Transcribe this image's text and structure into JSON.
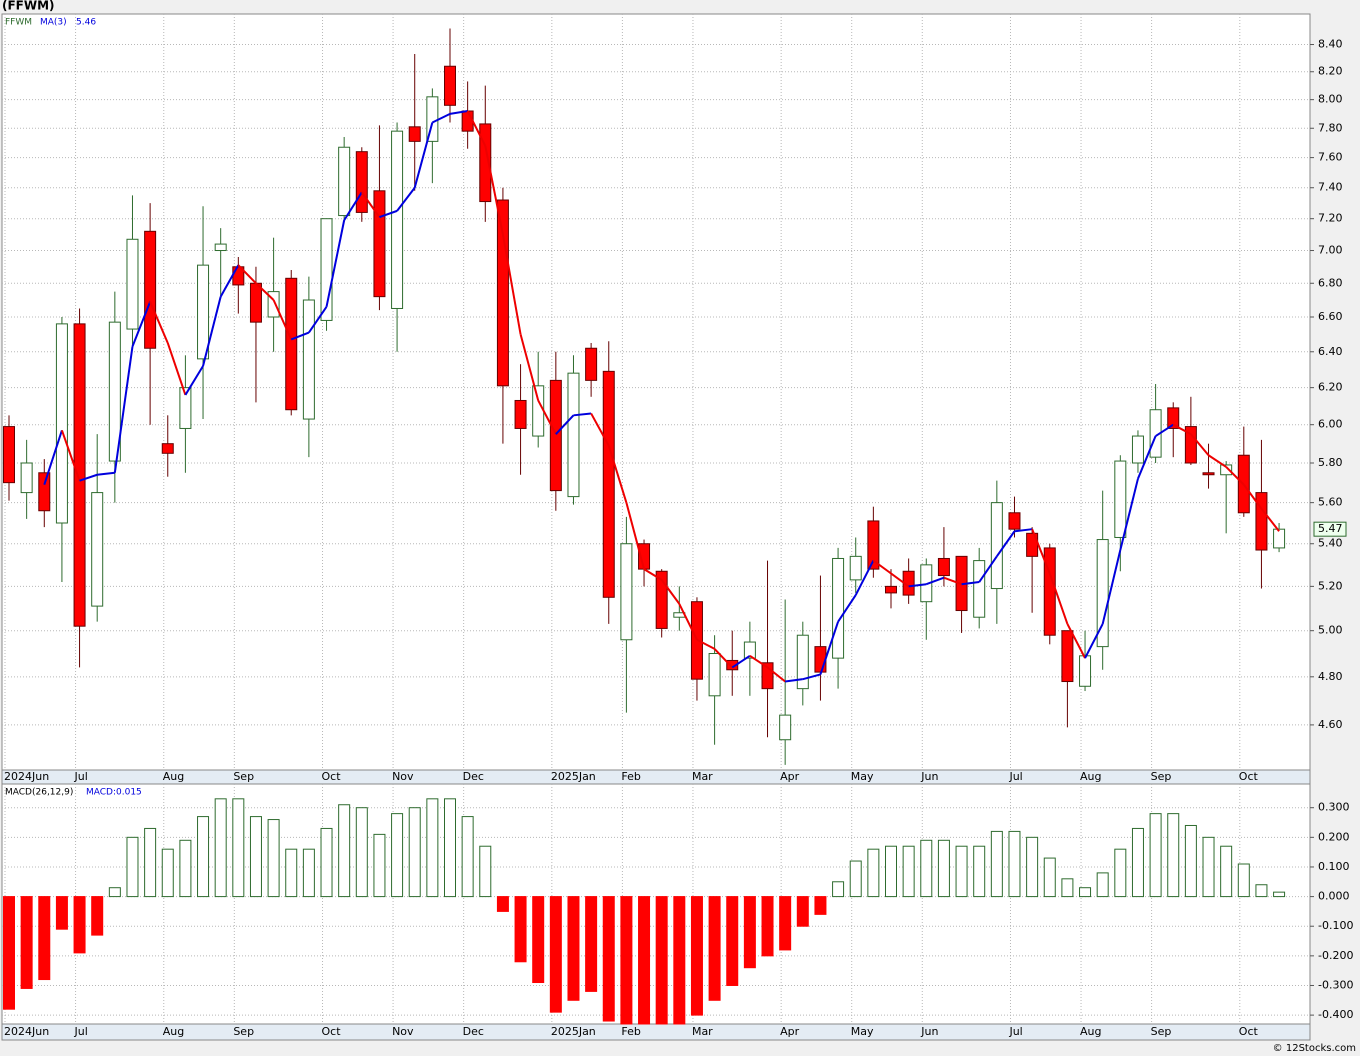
{
  "chart_data": [
    {
      "type": "candlestick",
      "title": "(FFWM)",
      "symbol": "FFWM",
      "log": true,
      "grid": true,
      "categories": [
        "2024Jun",
        null,
        null,
        null,
        "Jul",
        null,
        null,
        null,
        null,
        "Aug",
        null,
        null,
        null,
        "Sep",
        null,
        null,
        null,
        null,
        "Oct",
        null,
        null,
        null,
        "Nov",
        null,
        null,
        null,
        "Dec",
        null,
        null,
        null,
        null,
        "2025Jan",
        null,
        null,
        null,
        "Feb",
        null,
        null,
        null,
        "Mar",
        null,
        null,
        null,
        null,
        "Apr",
        null,
        null,
        null,
        "May",
        null,
        null,
        null,
        "Jun",
        null,
        null,
        null,
        null,
        "Jul",
        null,
        null,
        null,
        "Aug",
        null,
        null,
        null,
        "Sep",
        null,
        null,
        null,
        null,
        "Oct",
        null,
        null
      ],
      "open": [
        5.99,
        5.65,
        5.75,
        5.5,
        6.56,
        5.11,
        5.81,
        6.53,
        7.12,
        5.9,
        5.98,
        6.36,
        7.0,
        6.9,
        6.8,
        6.6,
        6.83,
        6.03,
        6.58,
        7.22,
        7.64,
        7.38,
        6.65,
        7.81,
        7.71,
        8.24,
        7.92,
        7.83,
        7.32,
        6.13,
        5.94,
        6.24,
        5.63,
        6.42,
        6.29,
        4.96,
        5.4,
        5.27,
        5.06,
        5.13,
        4.72,
        4.87,
        4.88,
        4.86,
        4.54,
        4.75,
        4.93,
        4.88,
        5.23,
        5.51,
        5.2,
        5.27,
        5.13,
        5.33,
        5.34,
        5.06,
        5.19,
        5.55,
        5.45,
        5.38,
        5.0,
        4.76,
        4.93,
        5.43,
        5.8,
        5.83,
        6.09,
        5.99,
        5.75,
        5.74,
        5.84,
        5.65,
        5.38
      ],
      "high": [
        6.05,
        5.92,
        5.82,
        6.6,
        6.65,
        5.95,
        6.75,
        7.35,
        7.3,
        6.05,
        6.38,
        7.28,
        7.14,
        6.96,
        6.9,
        7.08,
        6.88,
        6.84,
        7.2,
        7.74,
        7.67,
        7.82,
        7.84,
        8.33,
        8.08,
        8.52,
        8.13,
        8.1,
        7.4,
        6.33,
        6.4,
        6.4,
        6.38,
        6.45,
        6.46,
        5.53,
        5.42,
        5.28,
        5.2,
        5.15,
        4.98,
        5.0,
        5.04,
        5.32,
        5.14,
        5.04,
        5.25,
        5.38,
        5.43,
        5.58,
        5.28,
        5.33,
        5.33,
        5.48,
        5.34,
        5.38,
        5.71,
        5.63,
        5.48,
        5.4,
        5.0,
        5.0,
        5.66,
        5.84,
        5.97,
        6.22,
        6.12,
        6.15,
        5.9,
        5.81,
        5.99,
        5.92,
        5.5
      ],
      "low": [
        5.61,
        5.52,
        5.48,
        5.22,
        4.84,
        5.04,
        5.6,
        6.42,
        6.0,
        5.73,
        5.75,
        6.03,
        6.72,
        6.62,
        6.12,
        6.4,
        6.05,
        5.83,
        6.52,
        7.18,
        7.18,
        6.64,
        6.4,
        7.38,
        7.43,
        7.84,
        7.66,
        7.18,
        5.9,
        5.74,
        5.88,
        5.56,
        5.59,
        6.15,
        5.03,
        4.65,
        5.2,
        4.97,
        5.0,
        4.7,
        4.52,
        4.72,
        4.72,
        4.55,
        4.44,
        4.68,
        4.7,
        4.75,
        5.17,
        5.24,
        5.1,
        5.12,
        4.96,
        5.2,
        4.99,
        5.01,
        5.03,
        5.43,
        5.08,
        4.94,
        4.59,
        4.74,
        4.83,
        5.27,
        5.75,
        5.8,
        5.83,
        5.79,
        5.67,
        5.45,
        5.53,
        5.19,
        5.36
      ],
      "close": [
        5.7,
        5.8,
        5.56,
        6.56,
        5.02,
        5.65,
        6.57,
        7.07,
        6.42,
        5.85,
        6.2,
        6.91,
        7.04,
        6.79,
        6.57,
        6.75,
        6.08,
        6.7,
        7.2,
        7.67,
        7.24,
        6.72,
        7.78,
        7.71,
        8.02,
        7.96,
        7.78,
        7.31,
        6.21,
        5.98,
        6.21,
        5.66,
        6.28,
        6.24,
        5.15,
        5.4,
        5.28,
        5.01,
        5.08,
        4.79,
        4.9,
        4.83,
        4.95,
        4.75,
        4.64,
        4.98,
        4.82,
        5.33,
        5.34,
        5.28,
        5.17,
        5.16,
        5.3,
        5.25,
        5.09,
        5.32,
        5.6,
        5.47,
        5.34,
        4.98,
        4.78,
        4.89,
        5.42,
        5.81,
        5.94,
        6.08,
        5.98,
        5.8,
        5.74,
        5.79,
        5.55,
        5.37,
        5.47
      ],
      "up_color": "#2e6b2e",
      "down_color": "#ff0000",
      "series": [
        {
          "name": "MA(3)",
          "up_color": "#0000dd",
          "down_color": "#ee0000",
          "values": [
            null,
            null,
            5.69,
            5.97,
            5.71,
            5.74,
            5.75,
            6.43,
            6.69,
            6.45,
            6.16,
            6.32,
            6.72,
            6.91,
            6.8,
            6.7,
            6.47,
            6.51,
            6.66,
            7.19,
            7.37,
            7.21,
            7.25,
            7.4,
            7.84,
            7.9,
            7.92,
            7.68,
            7.1,
            6.5,
            6.13,
            5.95,
            6.05,
            6.06,
            5.89,
            5.6,
            5.28,
            5.23,
            5.12,
            4.96,
            4.92,
            4.84,
            4.89,
            4.84,
            4.78,
            4.79,
            4.81,
            5.04,
            5.16,
            5.32,
            5.26,
            5.2,
            5.21,
            5.24,
            5.21,
            5.22,
            5.34,
            5.46,
            5.47,
            5.26,
            5.03,
            4.88,
            5.03,
            5.37,
            5.72,
            5.94,
            6.0,
            5.95,
            5.84,
            5.78,
            5.69,
            5.57,
            5.46
          ]
        }
      ],
      "ylim": [
        4.42,
        8.63
      ],
      "yticks": [
        {
          "value": 4.6,
          "label": "4.60"
        },
        {
          "value": 4.8,
          "label": "4.80"
        },
        {
          "value": 5.0,
          "label": "5.00"
        },
        {
          "value": 5.2,
          "label": "5.20"
        },
        {
          "value": 5.4,
          "label": "5.40"
        },
        {
          "value": 5.6,
          "label": "5.60"
        },
        {
          "value": 5.8,
          "label": "5.80"
        },
        {
          "value": 6.0,
          "label": "6.00"
        },
        {
          "value": 6.2,
          "label": "6.20"
        },
        {
          "value": 6.4,
          "label": "6.40"
        },
        {
          "value": 6.6,
          "label": "6.60"
        },
        {
          "value": 6.8,
          "label": "6.80"
        },
        {
          "value": 7.0,
          "label": "7.00"
        },
        {
          "value": 7.2,
          "label": "7.20"
        },
        {
          "value": 7.4,
          "label": "7.40"
        },
        {
          "value": 7.6,
          "label": "7.60"
        },
        {
          "value": 7.8,
          "label": "7.80"
        },
        {
          "value": 8.0,
          "label": "8.00"
        },
        {
          "value": 8.2,
          "label": "8.20"
        },
        {
          "value": 8.4,
          "label": "8.40"
        }
      ]
    },
    {
      "type": "bar",
      "title": "MACD(26,12,9)",
      "grid": true,
      "categories": [
        "2024Jun",
        null,
        null,
        null,
        "Jul",
        null,
        null,
        null,
        null,
        "Aug",
        null,
        null,
        null,
        "Sep",
        null,
        null,
        null,
        null,
        "Oct",
        null,
        null,
        null,
        "Nov",
        null,
        null,
        null,
        "Dec",
        null,
        null,
        null,
        null,
        "2025Jan",
        null,
        null,
        null,
        "Feb",
        null,
        null,
        null,
        "Mar",
        null,
        null,
        null,
        null,
        "Apr",
        null,
        null,
        null,
        "May",
        null,
        null,
        null,
        "Jun",
        null,
        null,
        null,
        null,
        "Jul",
        null,
        null,
        null,
        "Aug",
        null,
        null,
        null,
        "Sep",
        null,
        null,
        null,
        null,
        "Oct",
        null,
        null
      ],
      "series": [
        {
          "name": "MACD:0.015",
          "pos_color": "#2e6b2e",
          "neg_color": "#ff0000",
          "values": [
            -0.38,
            -0.31,
            -0.28,
            -0.11,
            -0.19,
            -0.13,
            0.03,
            0.2,
            0.23,
            0.16,
            0.19,
            0.27,
            0.33,
            0.33,
            0.27,
            0.26,
            0.16,
            0.16,
            0.23,
            0.31,
            0.3,
            0.21,
            0.28,
            0.3,
            0.33,
            0.33,
            0.27,
            0.17,
            -0.05,
            -0.22,
            -0.29,
            -0.39,
            -0.35,
            -0.32,
            -0.42,
            -0.43,
            -0.43,
            -0.43,
            -0.43,
            -0.4,
            -0.35,
            -0.3,
            -0.24,
            -0.2,
            -0.18,
            -0.1,
            -0.06,
            0.05,
            0.12,
            0.16,
            0.17,
            0.17,
            0.19,
            0.19,
            0.17,
            0.17,
            0.22,
            0.22,
            0.2,
            0.13,
            0.06,
            0.03,
            0.08,
            0.16,
            0.23,
            0.28,
            0.28,
            0.24,
            0.2,
            0.17,
            0.11,
            0.04,
            0.015
          ]
        }
      ],
      "ylim": [
        -0.43,
        0.38
      ],
      "yticks": [
        {
          "value": -0.4,
          "label": "-0.400"
        },
        {
          "value": -0.3,
          "label": "-0.300"
        },
        {
          "value": -0.2,
          "label": "-0.200"
        },
        {
          "value": -0.1,
          "label": "-0.100"
        },
        {
          "value": 0,
          "label": "0.000"
        },
        {
          "value": 0.1,
          "label": "0.100"
        },
        {
          "value": 0.2,
          "label": "0.200"
        },
        {
          "value": 0.3,
          "label": "0.300"
        }
      ]
    }
  ],
  "credit": "© 12Stocks.com"
}
